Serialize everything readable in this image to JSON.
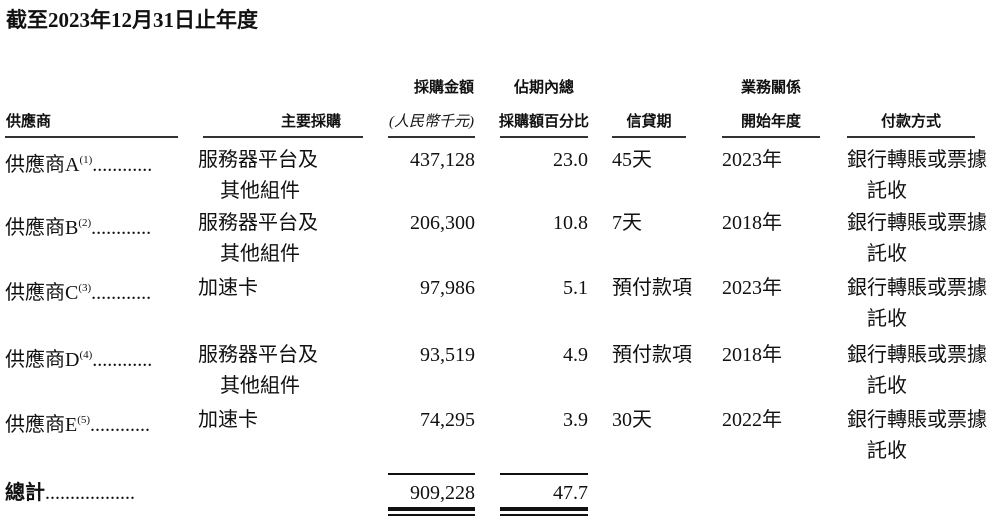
{
  "title": "截至2023年12月31日止年度",
  "headers": {
    "supplier": "供應商",
    "main_purchase": "主要採購",
    "amount_l1": "採購金額",
    "amount_l2": "(人民幣千元)",
    "pct_l1": "佔期內總",
    "pct_l2": "採購額百分比",
    "credit": "信貸期",
    "year_l1": "業務關係",
    "year_l2": "開始年度",
    "payment": "付款方式"
  },
  "rows": [
    {
      "supplier": "供應商A",
      "note": "(1)",
      "dots": "............",
      "purchase_l1": "服務器平台及",
      "purchase_l2": "其他組件",
      "amount": "437,128",
      "pct": "23.0",
      "credit": "45天",
      "year": "2023年",
      "payment_l1": "銀行轉賬或票據",
      "payment_l2": "託收"
    },
    {
      "supplier": "供應商B",
      "note": "(2)",
      "dots": "............",
      "purchase_l1": "服務器平台及",
      "purchase_l2": "其他組件",
      "amount": "206,300",
      "pct": "10.8",
      "credit": "7天",
      "year": "2018年",
      "payment_l1": "銀行轉賬或票據",
      "payment_l2": "託收"
    },
    {
      "supplier": "供應商C",
      "note": "(3)",
      "dots": "............",
      "purchase_l1": "加速卡",
      "purchase_l2": "",
      "amount": "97,986",
      "pct": "5.1",
      "credit": "預付款項",
      "year": "2023年",
      "payment_l1": "銀行轉賬或票據",
      "payment_l2": "託收"
    },
    {
      "supplier": "供應商D",
      "note": "(4)",
      "dots": "............",
      "purchase_l1": "服務器平台及",
      "purchase_l2": "其他組件",
      "amount": "93,519",
      "pct": "4.9",
      "credit": "預付款項",
      "year": "2018年",
      "payment_l1": "銀行轉賬或票據",
      "payment_l2": "託收"
    },
    {
      "supplier": "供應商E",
      "note": "(5)",
      "dots": "............",
      "purchase_l1": "加速卡",
      "purchase_l2": "",
      "amount": "74,295",
      "pct": "3.9",
      "credit": "30天",
      "year": "2022年",
      "payment_l1": "銀行轉賬或票據",
      "payment_l2": "託收"
    }
  ],
  "total": {
    "label": "總計",
    "dots": "..................",
    "amount": "909,228",
    "pct": "47.7"
  }
}
